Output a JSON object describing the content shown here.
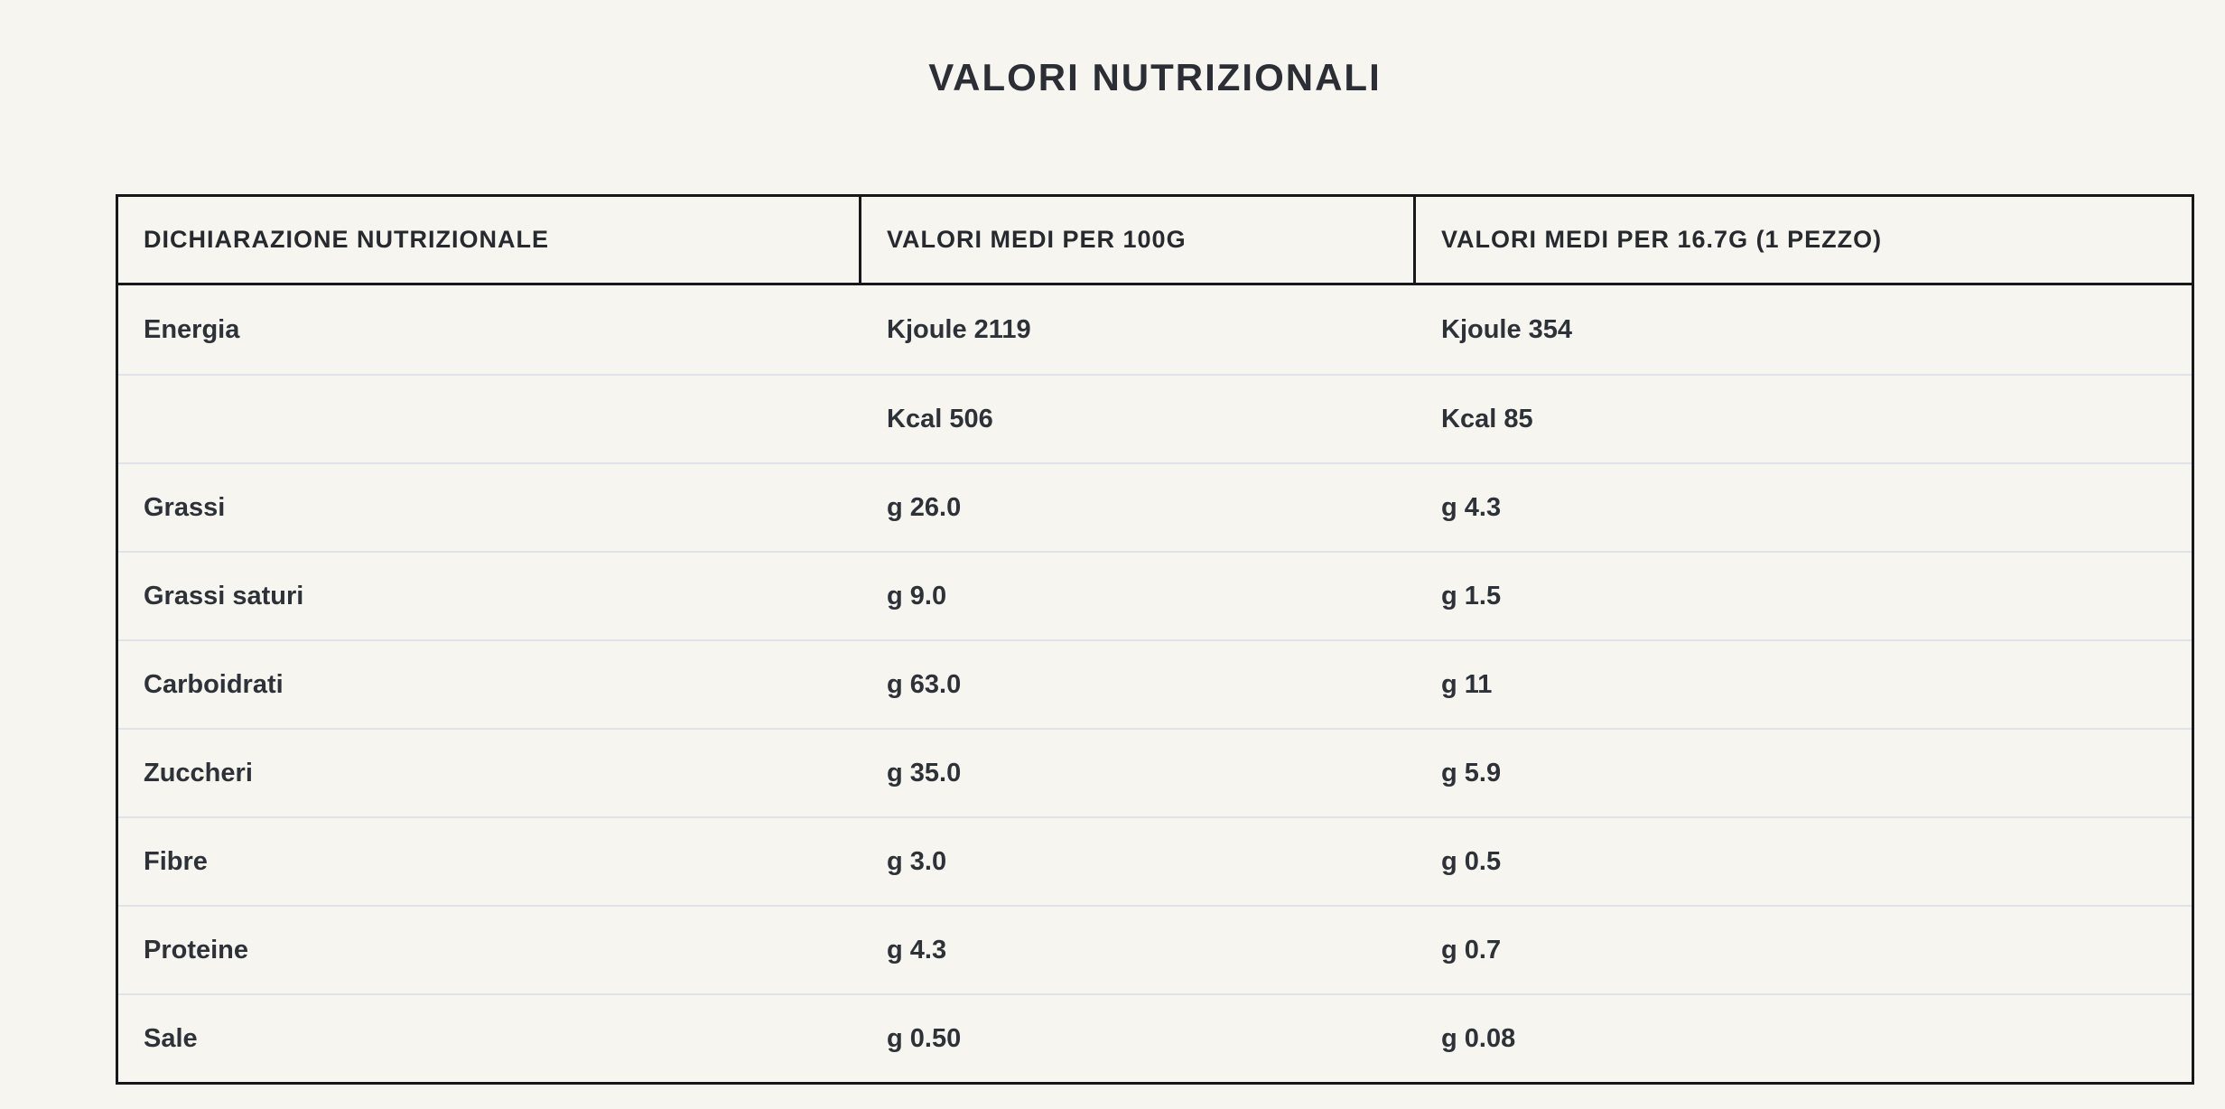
{
  "page": {
    "title": "VALORI NUTRIZIONALI"
  },
  "colors": {
    "background": "#f7f5f0",
    "table_border": "#17181a",
    "row_divider": "#e0e2ea",
    "text": "#2d3138"
  },
  "table": {
    "headers": {
      "declaration": "DICHIARAZIONE NUTRIZIONALE",
      "per_100g": "VALORI MEDI PER 100G",
      "per_piece": "VALORI MEDI PER 16.7G (1 PEZZO)"
    },
    "rows": [
      {
        "label": "Energia",
        "per_100g": "Kjoule 2119",
        "per_piece": "Kjoule 354"
      },
      {
        "label": "",
        "per_100g": "Kcal 506",
        "per_piece": "Kcal 85"
      },
      {
        "label": "Grassi",
        "per_100g": "g 26.0",
        "per_piece": "g 4.3"
      },
      {
        "label": "Grassi saturi",
        "per_100g": "g 9.0",
        "per_piece": "g 1.5"
      },
      {
        "label": "Carboidrati",
        "per_100g": "g 63.0",
        "per_piece": "g 11"
      },
      {
        "label": "Zuccheri",
        "per_100g": "g 35.0",
        "per_piece": "g 5.9"
      },
      {
        "label": "Fibre",
        "per_100g": "g 3.0",
        "per_piece": "g 0.5"
      },
      {
        "label": "Proteine",
        "per_100g": "g 4.3",
        "per_piece": "g 0.7"
      },
      {
        "label": "Sale",
        "per_100g": "g 0.50",
        "per_piece": "g 0.08"
      }
    ]
  }
}
